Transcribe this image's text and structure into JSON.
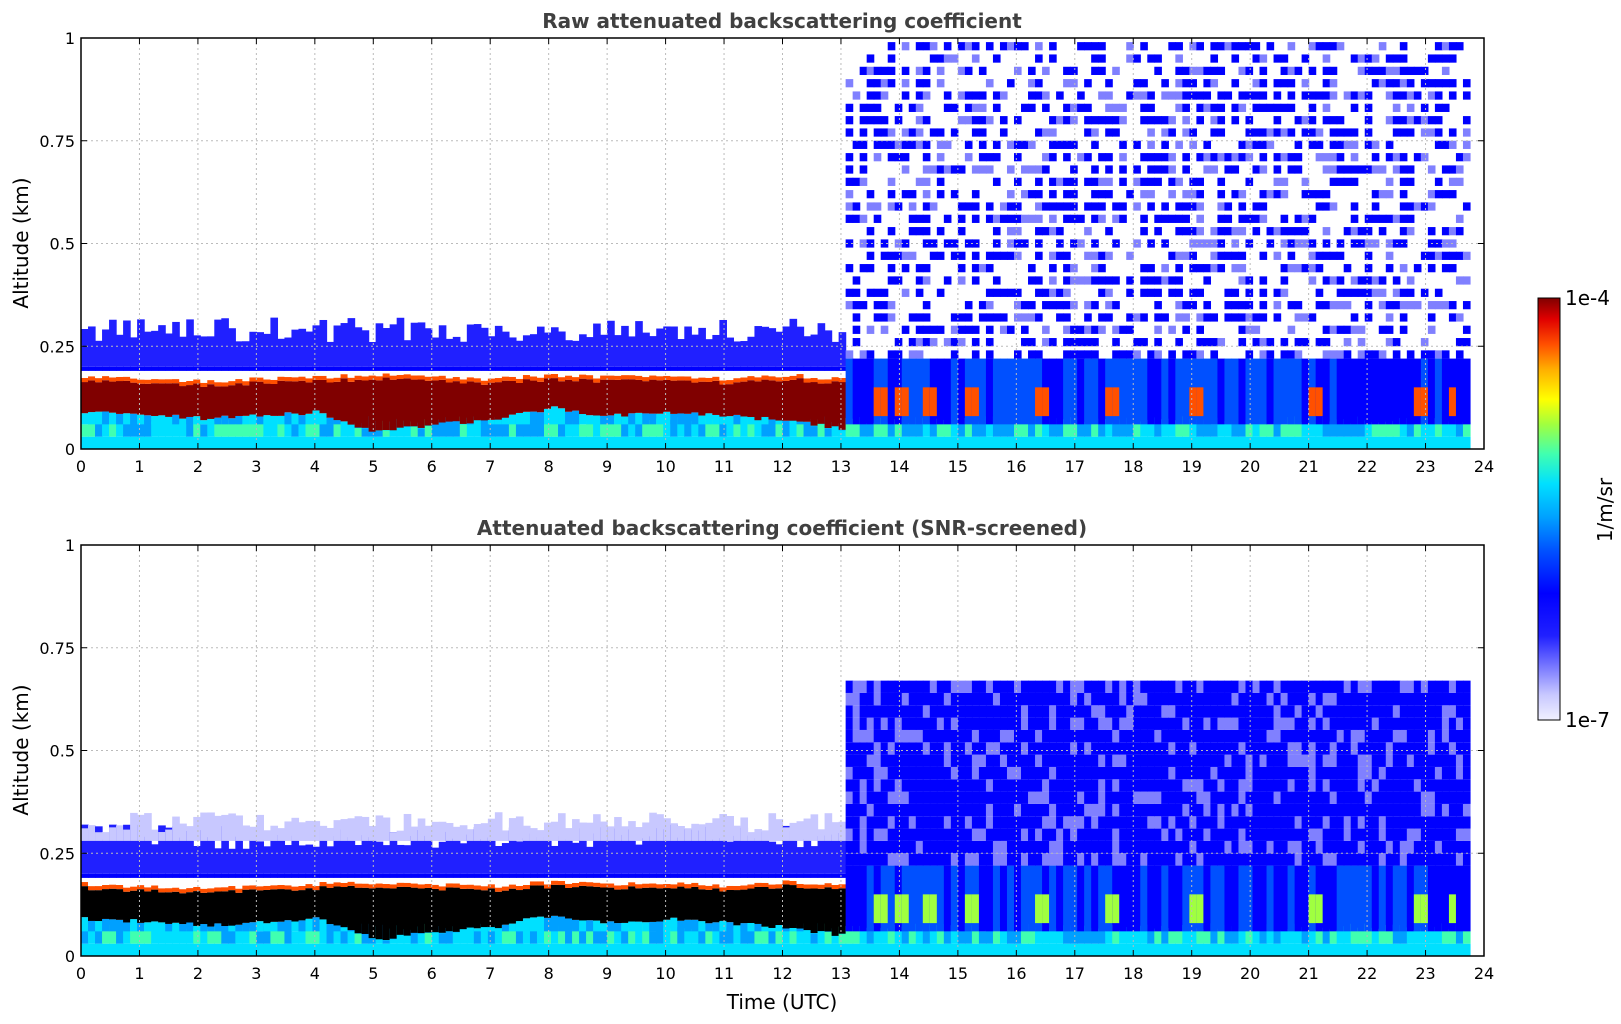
{
  "figure": {
    "colorbar": {
      "label": "1/m/sr",
      "max_label": "1e-4",
      "min_label": "1e-7",
      "scale": "log",
      "range": [
        1e-07,
        0.0001
      ],
      "colormap": [
        "#f0f0ff",
        "#c8c8ff",
        "#8080ff",
        "#2020ff",
        "#0000ff",
        "#0050ff",
        "#00a0ff",
        "#00e0ff",
        "#40ffb0",
        "#a0ff40",
        "#ffff00",
        "#ffb000",
        "#ff5000",
        "#e00000",
        "#800000"
      ]
    },
    "xlabel": "Time (UTC)"
  },
  "chart_data": [
    {
      "type": "heatmap",
      "title": "Raw attenuated backscattering coefficient",
      "xlabel": "",
      "ylabel": "Altitude (km)",
      "xlim": [
        0,
        24
      ],
      "ylim": [
        0,
        1
      ],
      "xticks": [
        "0",
        "1",
        "2",
        "3",
        "4",
        "5",
        "6",
        "7",
        "8",
        "9",
        "10",
        "11",
        "12",
        "13",
        "14",
        "15",
        "16",
        "17",
        "18",
        "19",
        "20",
        "21",
        "22",
        "23",
        "24"
      ],
      "yticks": [
        "0",
        "0.25",
        "0.5",
        "0.75",
        "1"
      ],
      "grid": true,
      "fog_layer": {
        "top_km": [
          [
            0,
            0.165
          ],
          [
            1,
            0.16
          ],
          [
            2,
            0.155
          ],
          [
            3,
            0.16
          ],
          [
            4,
            0.165
          ],
          [
            5,
            0.17
          ],
          [
            6,
            0.165
          ],
          [
            7,
            0.16
          ],
          [
            8,
            0.17
          ],
          [
            9,
            0.165
          ],
          [
            10,
            0.17
          ],
          [
            11,
            0.16
          ],
          [
            12,
            0.17
          ],
          [
            13,
            0.16
          ]
        ],
        "base_km": [
          [
            0,
            0.09
          ],
          [
            1,
            0.085
          ],
          [
            2,
            0.075
          ],
          [
            3,
            0.08
          ],
          [
            4,
            0.09
          ],
          [
            5,
            0.04
          ],
          [
            6,
            0.06
          ],
          [
            7,
            0.07
          ],
          [
            8,
            0.1
          ],
          [
            9,
            0.08
          ],
          [
            10,
            0.09
          ],
          [
            11,
            0.08
          ],
          [
            12,
            0.07
          ],
          [
            13,
            0.05
          ]
        ],
        "white_band_km": 0.19
      },
      "ambient_noise_start_hour": 13,
      "isolated_cloud_hours": [
        13.6,
        14.0,
        14.5,
        15.2,
        16.4,
        17.6,
        19.0,
        21.0,
        22.9,
        23.4
      ],
      "end_hour": 23.65
    },
    {
      "type": "heatmap",
      "title": "Attenuated backscattering coefficient (SNR-screened)",
      "xlabel": "Time (UTC)",
      "ylabel": "Altitude (km)",
      "xlim": [
        0,
        24
      ],
      "ylim": [
        0,
        1
      ],
      "xticks": [
        "0",
        "1",
        "2",
        "3",
        "4",
        "5",
        "6",
        "7",
        "8",
        "9",
        "10",
        "11",
        "12",
        "13",
        "14",
        "15",
        "16",
        "17",
        "18",
        "19",
        "20",
        "21",
        "22",
        "23",
        "24"
      ],
      "yticks": [
        "0",
        "0.25",
        "0.5",
        "0.75",
        "1"
      ],
      "grid": true,
      "screened_top_km": 0.66,
      "saturated_color": "#000000",
      "end_hour": 23.65
    }
  ]
}
